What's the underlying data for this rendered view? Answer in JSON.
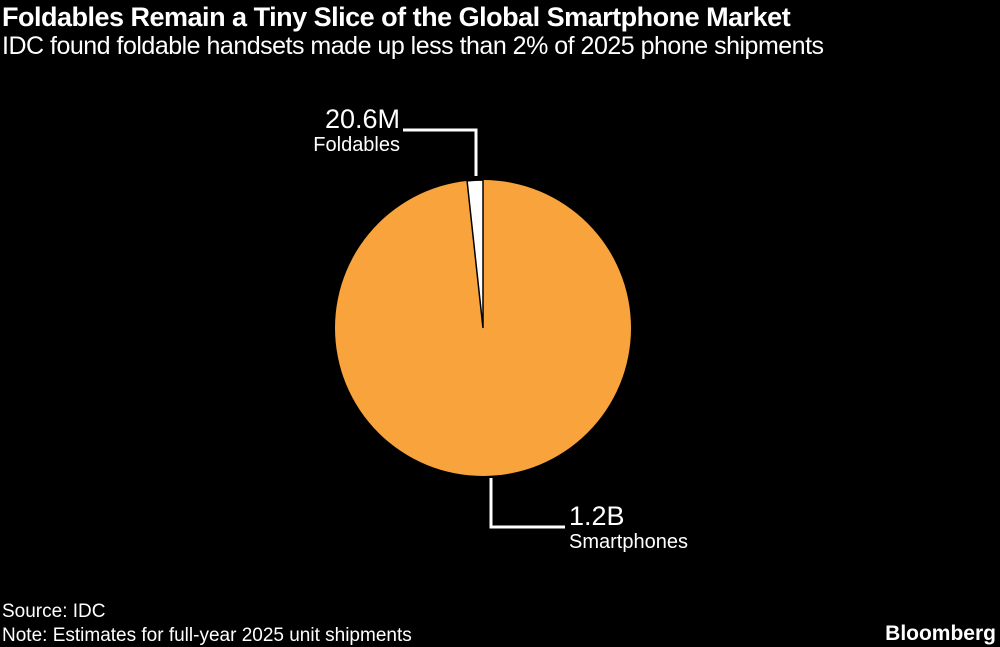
{
  "header": {
    "title": "Foldables Remain a Tiny Slice of the Global Smartphone Market",
    "subtitle": "IDC found foldable handsets made up less than 2% of 2025 phone shipments"
  },
  "annotations": {
    "foldables": {
      "value": "20.6M",
      "label": "Foldables"
    },
    "smartphones": {
      "value": "1.2B",
      "label": "Smartphones"
    }
  },
  "footer": {
    "source": "Source: IDC",
    "note": "Note: Estimates for full-year 2025 unit shipments",
    "brand": "Bloomberg"
  },
  "colors": {
    "background": "#000000",
    "text": "#FFFFFF",
    "pie_orange": "#F8A33B",
    "pie_white": "#FFFFFF",
    "slice_outline": "#000000",
    "leader_line": "#FFFFFF"
  },
  "chart_data": {
    "type": "pie",
    "title": "Foldables Remain a Tiny Slice of the Global Smartphone Market",
    "subtitle": "IDC found foldable handsets made up less than 2% of 2025 phone shipments",
    "slices": [
      {
        "label": "Smartphones",
        "value_label": "1.2B",
        "value_units": 1200000000,
        "share_pct": 98.3,
        "color": "#F8A33B"
      },
      {
        "label": "Foldables",
        "value_label": "20.6M",
        "value_units": 20600000,
        "share_pct": 1.7,
        "color": "#FFFFFF"
      }
    ],
    "legend": "none",
    "start_angle_deg": 0,
    "foldables_slice_position": "ends at 12 o'clock, sweeping counterclockwise",
    "source": "IDC",
    "note": "Estimates for full-year 2025 unit shipments"
  }
}
